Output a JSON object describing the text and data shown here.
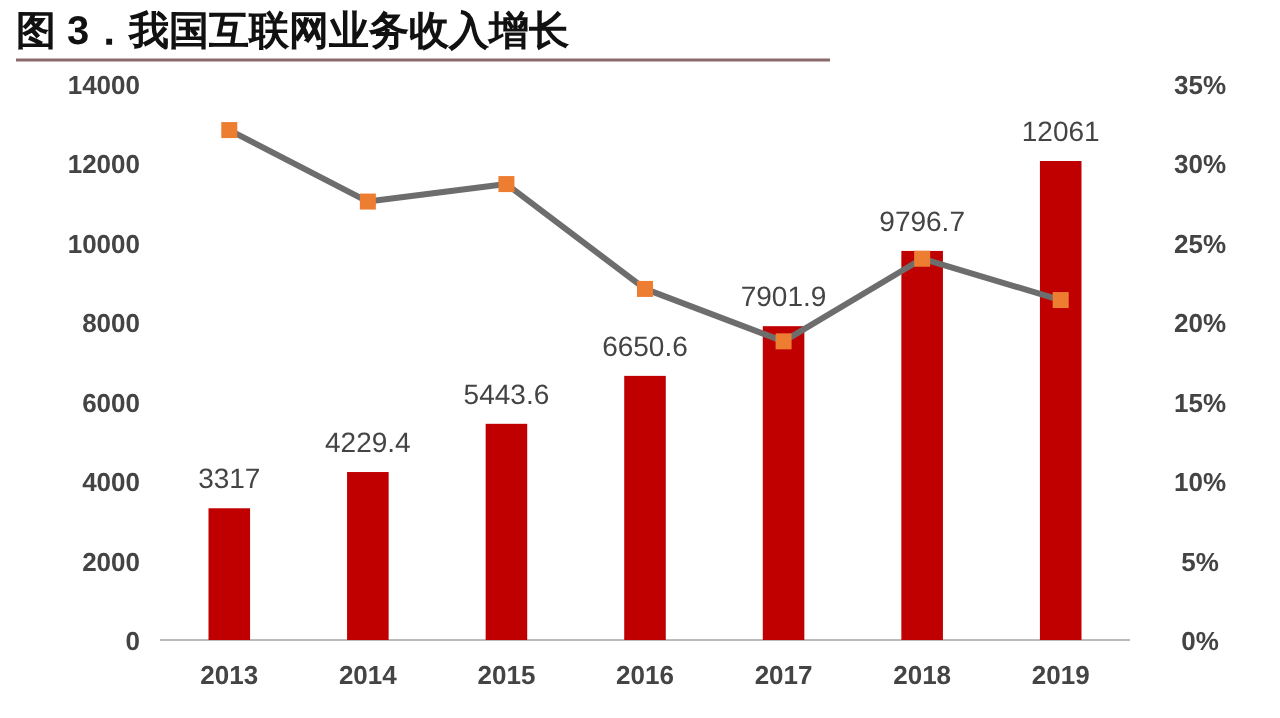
{
  "chart_data": {
    "type": "bar",
    "title": "图 3．我国互联网业务收入增长",
    "categories": [
      "2013",
      "2014",
      "2015",
      "2016",
      "2017",
      "2018",
      "2019"
    ],
    "series": [
      {
        "color": "#c00000",
        "values": [
          3317,
          4229.4,
          5443.6,
          6650.6,
          7901.9,
          9796.7,
          12061
        ],
        "data_labels": true
      },
      {
        "type": "line",
        "axis": "y2",
        "color": "#6d6d6d",
        "colors": [
          "#ed7d31",
          "#ed7d31",
          "#ed7d31",
          "#ed7d31",
          "#ed7d31",
          "#ed7d31",
          "#ed7d31"
        ],
        "marker": "square",
        "values": [
          32.1,
          27.6,
          28.7,
          22.1,
          18.8,
          24.0,
          21.4
        ]
      }
    ],
    "ylim": [
      0,
      14000
    ],
    "yticks": [
      0,
      2000,
      4000,
      6000,
      8000,
      10000,
      12000,
      14000
    ],
    "y2lim": [
      0,
      35
    ],
    "y2ticks": [
      {
        "value": 0,
        "label": "0%"
      },
      {
        "value": 5,
        "label": "5%"
      },
      {
        "value": 10,
        "label": "10%"
      },
      {
        "value": 15,
        "label": "15%"
      },
      {
        "value": 20,
        "label": "20%"
      },
      {
        "value": 25,
        "label": "25%"
      },
      {
        "value": 30,
        "label": "30%"
      },
      {
        "value": 35,
        "label": "35%"
      }
    ],
    "grid": false
  }
}
